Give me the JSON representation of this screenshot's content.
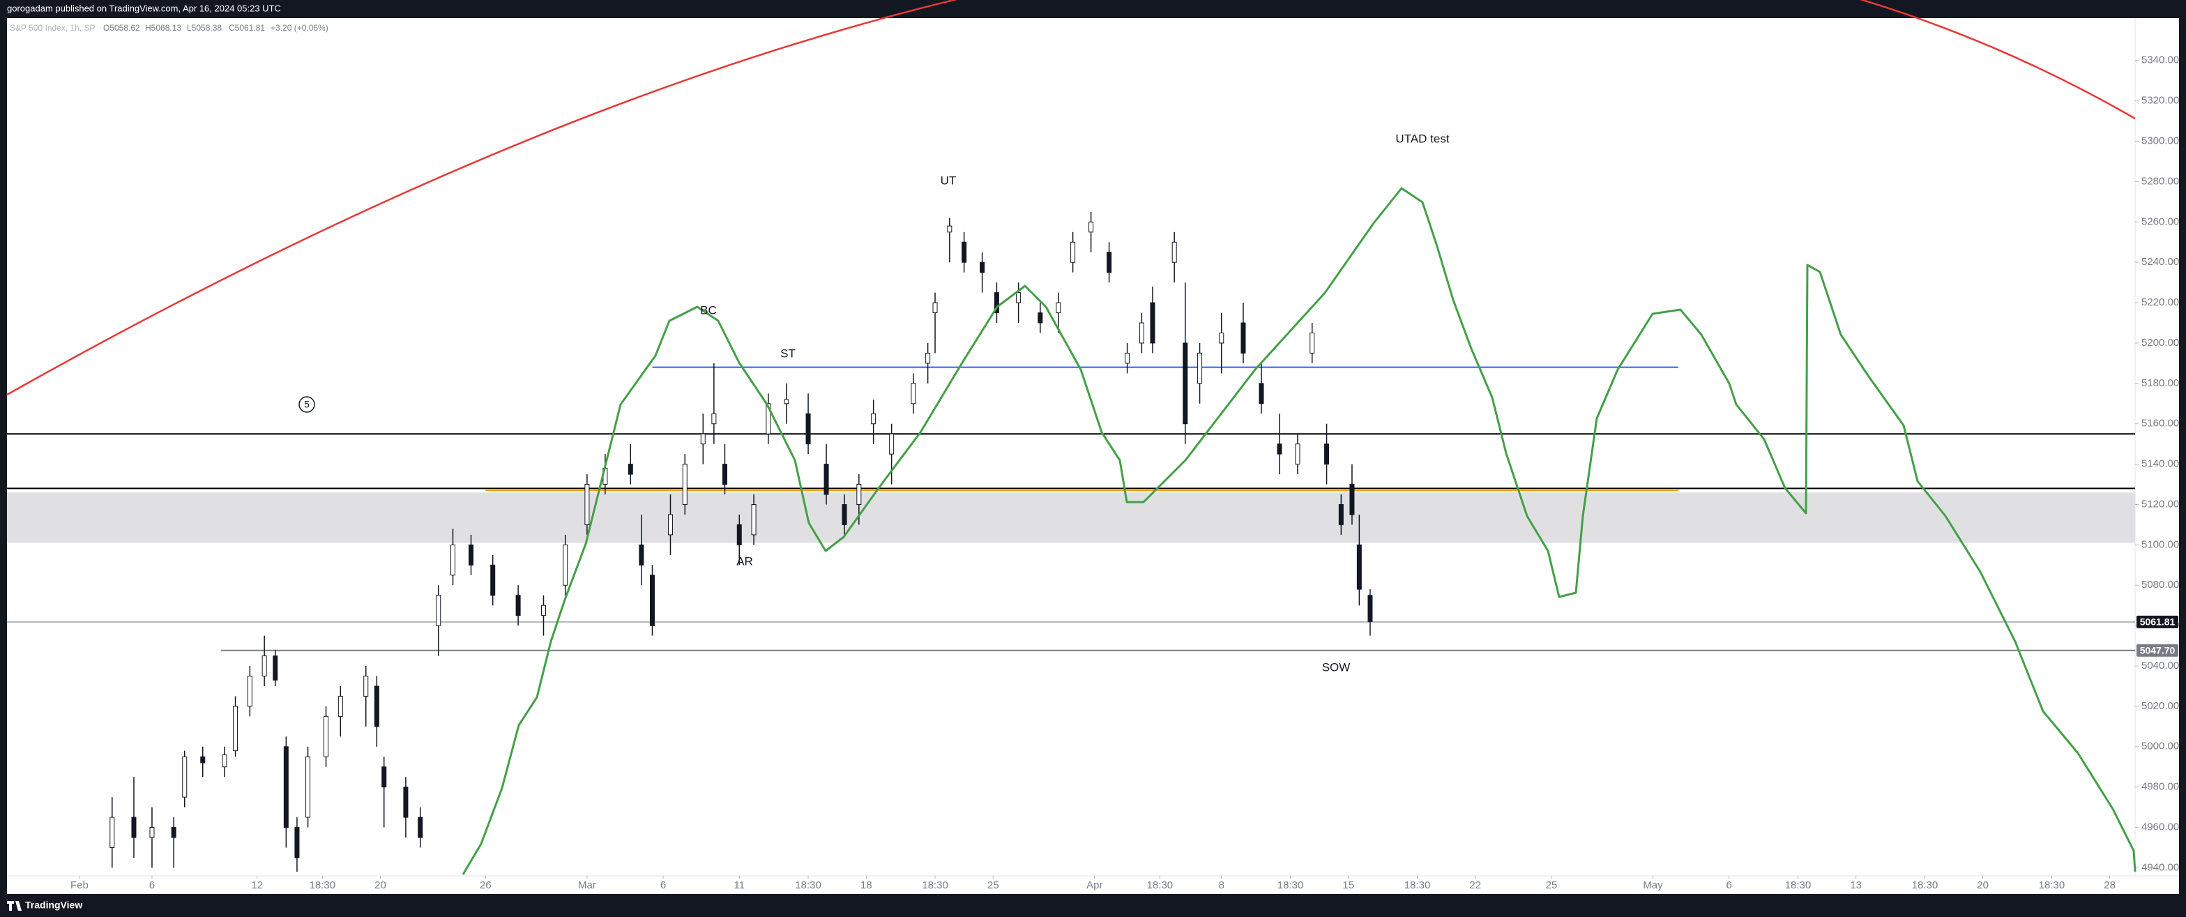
{
  "header": {
    "text": "gorogadam published on TradingView.com, Apr 16, 2024 05:23 UTC"
  },
  "footer": {
    "brand": "TradingView"
  },
  "chart_data": {
    "type": "candlestick",
    "legend": {
      "symbol": "S&P 500 Index, 1h, SP",
      "ohlc": [
        "O5058.62",
        "H5068.13",
        "L5058.38",
        "C5061.81"
      ],
      "change": "+3.20 (+0.06%)"
    },
    "annotations": [
      "UTAD test",
      "UT",
      "BC",
      "ST",
      "AR",
      "SOW",
      "5"
    ],
    "xlim": [
      0,
      587
    ],
    "xticks": [
      {
        "value": 20,
        "label": "Feb"
      },
      {
        "value": 40,
        "label": "6"
      },
      {
        "value": 69,
        "label": "12"
      },
      {
        "value": 87,
        "label": "18:30"
      },
      {
        "value": 103,
        "label": "20"
      },
      {
        "value": 132,
        "label": "26"
      },
      {
        "value": 160,
        "label": "Mar"
      },
      {
        "value": 181,
        "label": "6"
      },
      {
        "value": 202,
        "label": "11"
      },
      {
        "value": 221,
        "label": "18:30"
      },
      {
        "value": 237,
        "label": "18"
      },
      {
        "value": 256,
        "label": "18:30"
      },
      {
        "value": 272,
        "label": "25"
      },
      {
        "value": 300,
        "label": "Apr"
      },
      {
        "value": 318,
        "label": "18:30"
      },
      {
        "value": 335,
        "label": "8"
      },
      {
        "value": 354,
        "label": "18:30"
      },
      {
        "value": 370,
        "label": "15"
      },
      {
        "value": 389,
        "label": "18:30"
      },
      {
        "value": 405,
        "label": "22"
      },
      {
        "value": 426,
        "label": "25"
      },
      {
        "value": 454,
        "label": "May"
      },
      {
        "value": 475,
        "label": "6"
      },
      {
        "value": 494,
        "label": "18:30"
      },
      {
        "value": 510,
        "label": "13"
      },
      {
        "value": 529,
        "label": "18:30"
      },
      {
        "value": 545,
        "label": "20"
      },
      {
        "value": 564,
        "label": "18:30"
      },
      {
        "value": 580,
        "label": "28"
      }
    ],
    "ylim": [
      4936,
      5361
    ],
    "yticks": [
      {
        "value": 5340,
        "label": "5340.00"
      },
      {
        "value": 5320,
        "label": "5320.00"
      },
      {
        "value": 5300,
        "label": "5300.00"
      },
      {
        "value": 5280,
        "label": "5280.00"
      },
      {
        "value": 5260,
        "label": "5260.00"
      },
      {
        "value": 5240,
        "label": "5240.00"
      },
      {
        "value": 5220,
        "label": "5220.00"
      },
      {
        "value": 5200,
        "label": "5200.00"
      },
      {
        "value": 5180,
        "label": "5180.00"
      },
      {
        "value": 5160,
        "label": "5160.00"
      },
      {
        "value": 5140,
        "label": "5140.00"
      },
      {
        "value": 5120,
        "label": "5120.00"
      },
      {
        "value": 5100,
        "label": "5100.00"
      },
      {
        "value": 5080,
        "label": "5080.00"
      },
      {
        "value": 5060,
        "label": "5060.00"
      },
      {
        "value": 5040,
        "label": "5040.00"
      },
      {
        "value": 5020,
        "label": "5020.00"
      },
      {
        "value": 5000,
        "label": "5000.00"
      },
      {
        "value": 4980,
        "label": "4980.00"
      },
      {
        "value": 4960,
        "label": "4960.00"
      },
      {
        "value": 4940,
        "label": "4940.00"
      }
    ],
    "zone": {
      "from": 5101,
      "to": 5126,
      "color": "#e0e0e3"
    },
    "levels": [
      {
        "value": 5155,
        "color": "#000000",
        "from": 0,
        "to": 587
      },
      {
        "value": 5128,
        "color": "#000000",
        "from": 0,
        "to": 587
      },
      {
        "value": 5127,
        "color": "#ff9800",
        "from": 132,
        "to": 461
      },
      {
        "value": 5188,
        "color": "#2962ff",
        "from": 178,
        "to": 461
      },
      {
        "value": 5061.81,
        "color": "#b2b5be",
        "from": 0,
        "to": 587
      },
      {
        "value": 5047.7,
        "color": "#787b86",
        "from": 59,
        "to": 587
      }
    ],
    "price_labels": [
      {
        "value": 5061.81,
        "label": "5061.81",
        "color": "#131722"
      },
      {
        "value": 5047.7,
        "label": "5047.70",
        "color": "#787b86"
      }
    ],
    "candles": [
      [
        29,
        4950,
        4975,
        4940,
        4965
      ],
      [
        35,
        4965,
        4985,
        4945,
        4955
      ],
      [
        40,
        4955,
        4970,
        4940,
        4960
      ],
      [
        46,
        4960,
        4965,
        4940,
        4955
      ],
      [
        49,
        4975,
        4998,
        4970,
        4995
      ],
      [
        54,
        4995,
        5000,
        4985,
        4992
      ],
      [
        60,
        4990,
        5000,
        4985,
        4996
      ],
      [
        63,
        4998,
        5025,
        4995,
        5020
      ],
      [
        67,
        5020,
        5040,
        5015,
        5035
      ],
      [
        71,
        5035,
        5055,
        5030,
        5045
      ],
      [
        74,
        5045,
        5048,
        5030,
        5033
      ],
      [
        77,
        5000,
        5005,
        4950,
        4960
      ],
      [
        80,
        4960,
        4965,
        4938,
        4945
      ],
      [
        83,
        4965,
        5000,
        4960,
        4995
      ],
      [
        88,
        4995,
        5020,
        4990,
        5015
      ],
      [
        92,
        5015,
        5030,
        5005,
        5025
      ],
      [
        99,
        5025,
        5040,
        5010,
        5035
      ],
      [
        102,
        5030,
        5035,
        5000,
        5010
      ],
      [
        104,
        4990,
        4995,
        4960,
        4980
      ],
      [
        110,
        4980,
        4985,
        4955,
        4965
      ],
      [
        114,
        4965,
        4970,
        4950,
        4955
      ],
      [
        119,
        5060,
        5080,
        5045,
        5075
      ],
      [
        123,
        5085,
        5108,
        5080,
        5100
      ],
      [
        128,
        5100,
        5105,
        5085,
        5090
      ],
      [
        134,
        5090,
        5095,
        5070,
        5075
      ],
      [
        141,
        5075,
        5080,
        5060,
        5065
      ],
      [
        148,
        5065,
        5075,
        5055,
        5070
      ],
      [
        154,
        5080,
        5105,
        5075,
        5100
      ],
      [
        160,
        5110,
        5135,
        5105,
        5130
      ],
      [
        165,
        5130,
        5145,
        5125,
        5138
      ],
      [
        172,
        5140,
        5150,
        5130,
        5135
      ],
      [
        175,
        5100,
        5115,
        5080,
        5090
      ],
      [
        178,
        5085,
        5090,
        5055,
        5060
      ],
      [
        183,
        5105,
        5125,
        5095,
        5115
      ],
      [
        187,
        5120,
        5145,
        5115,
        5140
      ],
      [
        192,
        5150,
        5165,
        5140,
        5155
      ],
      [
        195,
        5160,
        5190,
        5150,
        5165
      ],
      [
        198,
        5140,
        5150,
        5125,
        5130
      ],
      [
        202,
        5110,
        5115,
        5090,
        5100
      ],
      [
        206,
        5105,
        5125,
        5100,
        5120
      ],
      [
        210,
        5155,
        5175,
        5150,
        5170
      ],
      [
        215,
        5170,
        5180,
        5160,
        5172
      ],
      [
        221,
        5165,
        5175,
        5145,
        5150
      ],
      [
        226,
        5140,
        5150,
        5120,
        5125
      ],
      [
        231,
        5120,
        5125,
        5105,
        5110
      ],
      [
        235,
        5120,
        5135,
        5110,
        5130
      ],
      [
        239,
        5160,
        5172,
        5150,
        5165
      ],
      [
        244,
        5145,
        5160,
        5130,
        5155
      ],
      [
        250,
        5170,
        5185,
        5165,
        5180
      ],
      [
        254,
        5190,
        5200,
        5180,
        5195
      ],
      [
        256,
        5215,
        5225,
        5195,
        5220
      ],
      [
        260,
        5255,
        5262,
        5240,
        5258
      ],
      [
        264,
        5250,
        5255,
        5235,
        5240
      ],
      [
        269,
        5240,
        5245,
        5225,
        5235
      ],
      [
        273,
        5225,
        5230,
        5210,
        5215
      ],
      [
        279,
        5220,
        5230,
        5210,
        5225
      ],
      [
        285,
        5215,
        5220,
        5205,
        5210
      ],
      [
        290,
        5215,
        5225,
        5205,
        5220
      ],
      [
        294,
        5240,
        5255,
        5235,
        5250
      ],
      [
        299,
        5255,
        5265,
        5245,
        5260
      ],
      [
        304,
        5245,
        5250,
        5230,
        5235
      ],
      [
        309,
        5190,
        5200,
        5185,
        5195
      ],
      [
        313,
        5200,
        5215,
        5195,
        5210
      ],
      [
        316,
        5220,
        5228,
        5195,
        5200
      ],
      [
        322,
        5240,
        5255,
        5230,
        5250
      ],
      [
        325,
        5200,
        5230,
        5150,
        5160
      ],
      [
        329,
        5180,
        5200,
        5170,
        5195
      ],
      [
        335,
        5200,
        5215,
        5185,
        5205
      ],
      [
        341,
        5210,
        5220,
        5190,
        5195
      ],
      [
        346,
        5180,
        5190,
        5165,
        5170
      ],
      [
        351,
        5150,
        5165,
        5135,
        5145
      ],
      [
        356,
        5140,
        5155,
        5135,
        5150
      ],
      [
        360,
        5195,
        5210,
        5190,
        5205
      ],
      [
        364,
        5150,
        5160,
        5130,
        5140
      ],
      [
        368,
        5120,
        5125,
        5105,
        5110
      ],
      [
        371,
        5130,
        5140,
        5110,
        5115
      ],
      [
        373,
        5100,
        5115,
        5070,
        5078
      ],
      [
        376,
        5075,
        5078,
        5055,
        5062
      ]
    ]
  }
}
